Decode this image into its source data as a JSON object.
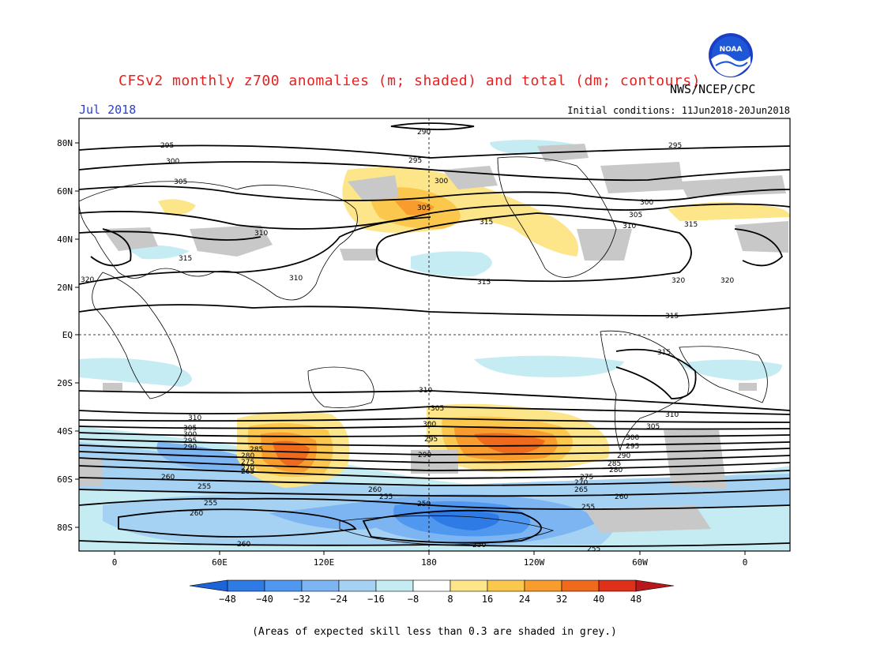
{
  "header": {
    "title": "CFSv2 monthly z700 anomalies (m; shaded) and total (dm; contours)",
    "agency": "NWS/NCEP/CPC",
    "month": "Jul 2018",
    "initial_conditions": "Initial conditions: 11Jun2018-20Jun2018",
    "logo_text": "NOAA"
  },
  "axes": {
    "lat_labels": [
      "80N",
      "60N",
      "40N",
      "20N",
      "EQ",
      "20S",
      "40S",
      "60S",
      "80S"
    ],
    "lon_labels": [
      "0",
      "60E",
      "120E",
      "180",
      "120W",
      "60W",
      "0"
    ]
  },
  "colorbar": {
    "labels": [
      "-48",
      "-40",
      "-32",
      "-24",
      "-16",
      "-8",
      "8",
      "16",
      "24",
      "32",
      "40",
      "48"
    ],
    "colors": [
      "#1e64d9",
      "#2e7be6",
      "#4f97ef",
      "#7cb5f2",
      "#a5d2f3",
      "#c6ecf3",
      "#ffffff",
      "#fde58a",
      "#fbc74c",
      "#f79c2d",
      "#f06a1e",
      "#e0301c",
      "#b8181c"
    ]
  },
  "contour_labels": [
    "290",
    "295",
    "300",
    "305",
    "310",
    "315",
    "320",
    "250",
    "255",
    "260",
    "265",
    "270",
    "275",
    "280",
    "285"
  ],
  "footnote": "(Areas of expected skill less than 0.3 are shaded in grey.)"
}
